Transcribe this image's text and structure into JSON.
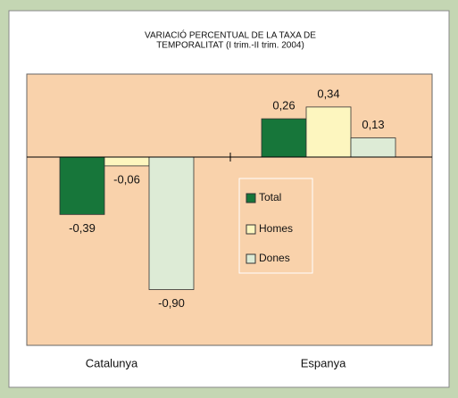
{
  "chart_data": {
    "type": "bar",
    "title": [
      "VARIACIÓ PERCENTUAL DE LA TAXA DE",
      "TEMPORALITAT (I trim.-II trim. 2004)"
    ],
    "categories": [
      "Catalunya",
      "Espanya"
    ],
    "series": [
      {
        "name": "Total",
        "color": "#17763a",
        "values": [
          -0.39,
          0.26
        ],
        "value_labels": [
          "-0,39",
          "0,26"
        ]
      },
      {
        "name": "Homes",
        "color": "#fdf6bf",
        "values": [
          -0.06,
          0.34
        ],
        "value_labels": [
          "-0,06",
          "0,34"
        ]
      },
      {
        "name": "Dones",
        "color": "#ddebd6",
        "values": [
          -0.9,
          0.13
        ],
        "value_labels": [
          "-0,90",
          "0,13"
        ]
      }
    ]
  }
}
